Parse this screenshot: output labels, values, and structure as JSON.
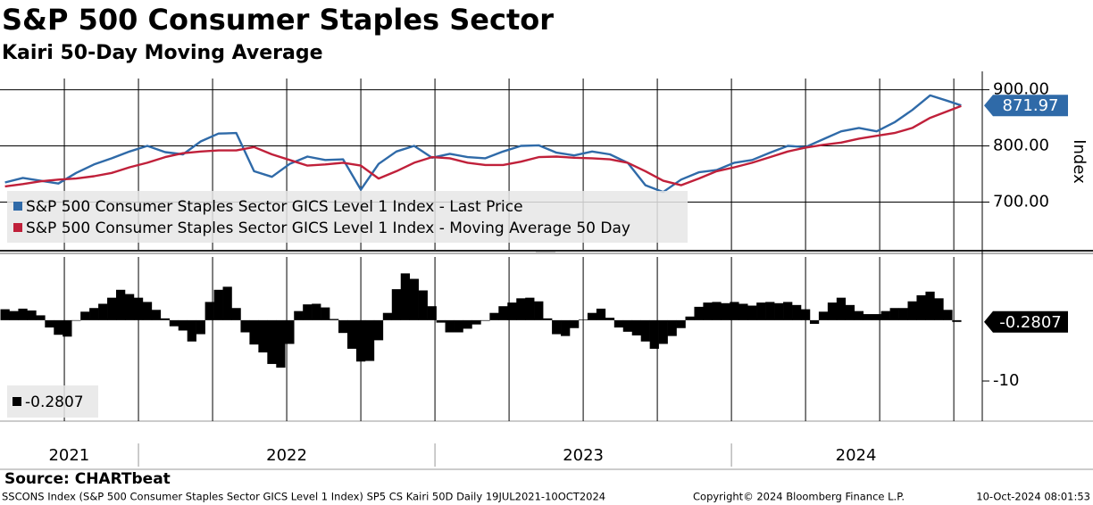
{
  "header": {
    "title": "S&P 500 Consumer Staples Sector",
    "subtitle": "Kairi 50-Day Moving Average"
  },
  "time_axis": {
    "xticks": [
      {
        "value": 2021.766,
        "label": "2021"
      },
      {
        "value": 2022.5,
        "label": "2022"
      },
      {
        "value": 2023.5,
        "label": "2023"
      },
      {
        "value": 2024.42,
        "label": "2024"
      }
    ],
    "dividers": [
      2022,
      2023,
      2024
    ],
    "xgrid": [
      2021.75,
      2022,
      2022.25,
      2022.5,
      2022.75,
      2023,
      2023.25,
      2023.5,
      2023.75,
      2024,
      2024.25,
      2024.5,
      2024.75
    ]
  },
  "chart_data": [
    {
      "type": "line",
      "y_label": "Index",
      "grid": true,
      "legend_position": "lower left",
      "xlim": [
        2021.533,
        2024.846
      ],
      "ylim": [
        615,
        920
      ],
      "yticks": [
        {
          "value": 700,
          "label": "700.00"
        },
        {
          "value": 800,
          "label": "800.00"
        },
        {
          "value": 900,
          "label": "900.00"
        }
      ],
      "x": [
        2021.55,
        2021.61,
        2021.67,
        2021.73,
        2021.79,
        2021.85,
        2021.91,
        2021.97,
        2022.03,
        2022.09,
        2022.15,
        2022.21,
        2022.27,
        2022.33,
        2022.39,
        2022.45,
        2022.51,
        2022.57,
        2022.63,
        2022.69,
        2022.75,
        2022.81,
        2022.87,
        2022.93,
        2022.99,
        2023.05,
        2023.11,
        2023.17,
        2023.23,
        2023.29,
        2023.35,
        2023.41,
        2023.47,
        2023.53,
        2023.59,
        2023.65,
        2023.71,
        2023.77,
        2023.83,
        2023.89,
        2023.95,
        2024.01,
        2024.07,
        2024.13,
        2024.19,
        2024.25,
        2024.31,
        2024.37,
        2024.43,
        2024.49,
        2024.55,
        2024.61,
        2024.67,
        2024.73,
        2024.775
      ],
      "series": [
        {
          "name": "S&P 500 Consumer Staples Sector GICS Level 1 Index - Last Price",
          "color": "#2f6aa8",
          "values": [
            735,
            743,
            738,
            733,
            752,
            767,
            778,
            790,
            800,
            789,
            785,
            808,
            822,
            823,
            755,
            745,
            768,
            781,
            775,
            776,
            722,
            768,
            790,
            800,
            779,
            786,
            780,
            778,
            790,
            800,
            801,
            788,
            783,
            790,
            785,
            770,
            730,
            718,
            740,
            753,
            757,
            770,
            775,
            788,
            800,
            798,
            812,
            826,
            832,
            826,
            842,
            864,
            890,
            880,
            871.97
          ]
        },
        {
          "name": "S&P 500 Consumer Staples Sector GICS Level 1 Index - Moving Average 50 Day",
          "color": "#c0203a",
          "values": [
            728,
            732,
            737,
            740,
            742,
            746,
            752,
            762,
            770,
            780,
            787,
            790,
            792,
            792,
            798,
            785,
            775,
            765,
            767,
            770,
            765,
            742,
            755,
            770,
            780,
            778,
            770,
            766,
            766,
            772,
            780,
            781,
            779,
            778,
            776,
            770,
            755,
            738,
            730,
            742,
            755,
            762,
            770,
            780,
            790,
            797,
            802,
            806,
            813,
            818,
            823,
            832,
            850,
            862,
            871
          ]
        }
      ]
    },
    {
      "type": "bar",
      "color": "#000000",
      "xlim": [
        2021.533,
        2024.846
      ],
      "ylim": [
        -16.6,
        10.4
      ],
      "yticks": [
        -10
      ],
      "x": [
        2021.55,
        2021.58,
        2021.61,
        2021.64,
        2021.67,
        2021.7,
        2021.73,
        2021.76,
        2021.79,
        2021.82,
        2021.85,
        2021.88,
        2021.91,
        2021.94,
        2021.97,
        2022.0,
        2022.03,
        2022.06,
        2022.09,
        2022.12,
        2022.15,
        2022.18,
        2022.21,
        2022.24,
        2022.27,
        2022.3,
        2022.33,
        2022.36,
        2022.39,
        2022.42,
        2022.45,
        2022.48,
        2022.51,
        2022.54,
        2022.57,
        2022.6,
        2022.63,
        2022.66,
        2022.69,
        2022.72,
        2022.75,
        2022.78,
        2022.81,
        2022.84,
        2022.87,
        2022.9,
        2022.93,
        2022.96,
        2022.99,
        2023.02,
        2023.05,
        2023.08,
        2023.11,
        2023.14,
        2023.17,
        2023.2,
        2023.23,
        2023.26,
        2023.29,
        2023.32,
        2023.35,
        2023.38,
        2023.41,
        2023.44,
        2023.47,
        2023.5,
        2023.53,
        2023.56,
        2023.59,
        2023.62,
        2023.65,
        2023.68,
        2023.71,
        2023.74,
        2023.77,
        2023.8,
        2023.83,
        2023.86,
        2023.89,
        2023.92,
        2023.95,
        2023.98,
        2024.01,
        2024.04,
        2024.07,
        2024.1,
        2024.13,
        2024.16,
        2024.19,
        2024.22,
        2024.25,
        2024.28,
        2024.31,
        2024.34,
        2024.37,
        2024.4,
        2024.43,
        2024.46,
        2024.49,
        2024.52,
        2024.55,
        2024.58,
        2024.61,
        2024.64,
        2024.67,
        2024.7,
        2024.73,
        2024.76
      ],
      "values": [
        1.8,
        1.5,
        1.9,
        1.6,
        0.8,
        -1.2,
        -2.4,
        -2.7,
        0.0,
        1.4,
        2.0,
        2.7,
        3.7,
        5.0,
        4.3,
        3.7,
        3.0,
        1.7,
        0.3,
        -1.0,
        -1.7,
        -3.5,
        -2.3,
        3.0,
        5.0,
        5.5,
        2.0,
        -2.0,
        -4.0,
        -5.3,
        -7.2,
        -7.8,
        -3.9,
        1.5,
        2.6,
        2.7,
        2.1,
        0.2,
        -2.1,
        -4.7,
        -6.8,
        -6.7,
        -3.3,
        1.2,
        5.1,
        7.7,
        6.8,
        4.9,
        2.3,
        -0.4,
        -2.0,
        -2.0,
        -1.4,
        -0.7,
        -0.1,
        1.2,
        2.3,
        2.9,
        3.6,
        3.7,
        3.1,
        0.3,
        -2.3,
        -2.6,
        -1.3,
        0.1,
        1.2,
        1.9,
        0.4,
        -1.2,
        -1.9,
        -2.5,
        -3.5,
        -4.7,
        -3.9,
        -2.6,
        -1.3,
        0.6,
        2.2,
        2.9,
        3.0,
        2.8,
        3.0,
        2.7,
        2.4,
        2.9,
        3.0,
        2.8,
        3.0,
        2.5,
        1.8,
        -0.6,
        1.4,
        2.9,
        3.7,
        2.5,
        1.5,
        1.0,
        1.0,
        1.5,
        2.0,
        2.0,
        3.1,
        4.1,
        4.7,
        3.6,
        1.7,
        -0.2807
      ]
    }
  ],
  "footer": {
    "source": "Source: CHARTbeat",
    "description": "SSCONS Index (S&P 500 Consumer Staples Sector GICS Level 1 Index) SP5 CS Kairi 50D  Daily 19JUL2021-10OCT2024",
    "copyright": "Copyright© 2024 Bloomberg Finance L.P.",
    "timestamp": "10-Oct-2024 08:01:53"
  }
}
